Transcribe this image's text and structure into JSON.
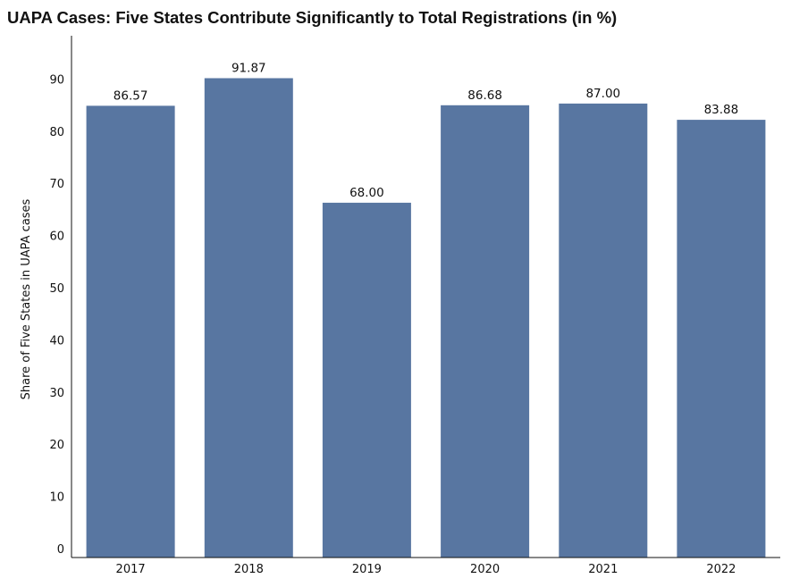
{
  "chart_data": {
    "type": "bar",
    "title": "UAPA Cases: Five States Contribute Significantly to Total Registrations (in %)",
    "xlabel": "",
    "ylabel": "Share of Five States in UAPA cases",
    "categories": [
      "2017",
      "2018",
      "2019",
      "2020",
      "2021",
      "2022"
    ],
    "values": [
      86.57,
      91.87,
      68.0,
      86.68,
      87.0,
      83.88
    ],
    "value_labels": [
      "86.57",
      "91.87",
      "68.00",
      "86.68",
      "87.00",
      "83.88"
    ],
    "yticks": [
      0,
      10,
      20,
      30,
      40,
      50,
      60,
      70,
      80,
      90
    ],
    "ylim": [
      0,
      100
    ],
    "grid": false,
    "legend": "none",
    "colors": {
      "bar": "#5876a1",
      "axis": "#111111"
    }
  }
}
